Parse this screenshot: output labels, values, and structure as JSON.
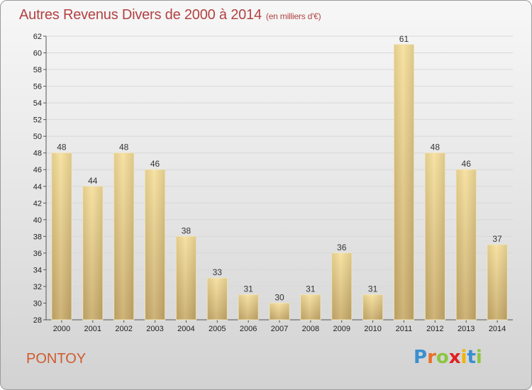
{
  "header": {
    "title": "Autres Revenus Divers de 2000 à 2014",
    "subtitle": "(en milliers d'€)"
  },
  "footer": {
    "commune": "PONTOY",
    "logo_letters": [
      {
        "char": "P",
        "color": "#3a8fd0"
      },
      {
        "char": "r",
        "color": "#e9702a"
      },
      {
        "char": "o",
        "color": "#8cc63f"
      },
      {
        "char": "x",
        "color": "#e02020"
      },
      {
        "char": "i",
        "color": "#f0b400"
      },
      {
        "char": "t",
        "color": "#3a8fd0"
      },
      {
        "char": "i",
        "color": "#8cc63f"
      }
    ]
  },
  "chart_data": {
    "type": "bar",
    "categories": [
      "2000",
      "2001",
      "2002",
      "2003",
      "2004",
      "2005",
      "2006",
      "2007",
      "2008",
      "2009",
      "2010",
      "2011",
      "2012",
      "2013",
      "2014"
    ],
    "values": [
      48,
      44,
      48,
      46,
      38,
      33,
      31,
      30,
      31,
      36,
      31,
      61,
      48,
      46,
      37
    ],
    "ylim": [
      28,
      62
    ],
    "yticks": [
      28,
      30,
      32,
      34,
      36,
      38,
      40,
      42,
      44,
      46,
      48,
      50,
      52,
      54,
      56,
      58,
      60,
      62
    ],
    "grid": true,
    "bar_color": "#e6c77f",
    "legend": "none"
  }
}
